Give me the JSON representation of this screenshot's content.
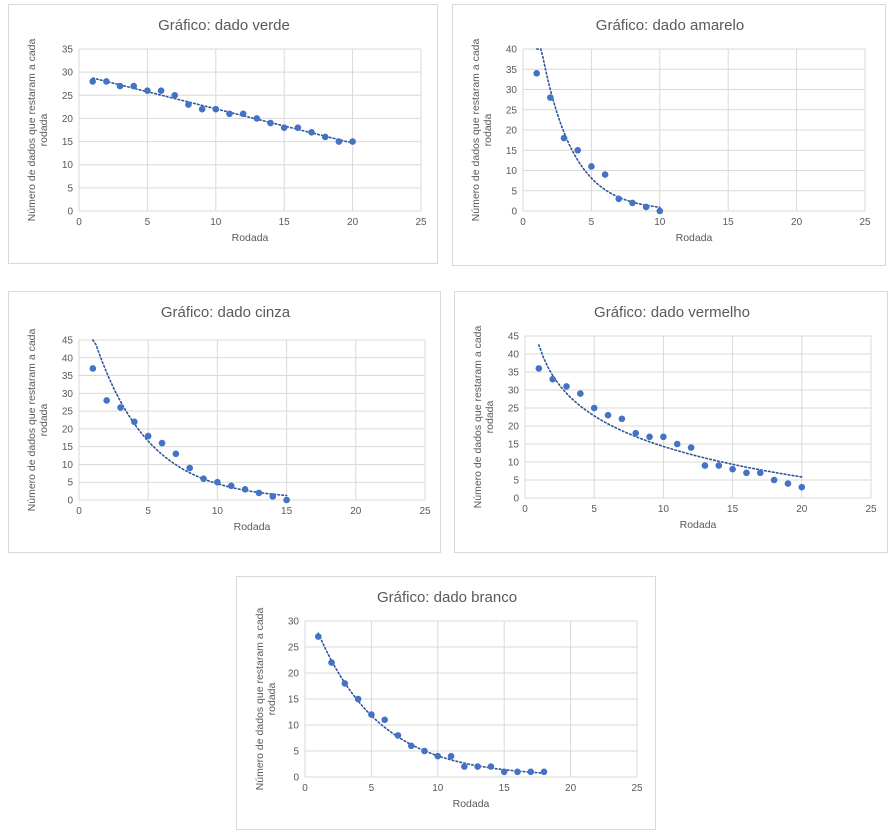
{
  "chart_data": [
    {
      "type": "scatter",
      "title": "Gráfico: dado verde",
      "xlabel": "Rodada",
      "ylabel_lines": [
        "Número de dados que restaram a cada",
        "rodada"
      ],
      "xlim": [
        0,
        25
      ],
      "ylim": [
        0,
        35
      ],
      "xticks": [
        0,
        5,
        10,
        15,
        20,
        25
      ],
      "yticks": [
        0,
        5,
        10,
        15,
        20,
        25,
        30,
        35
      ],
      "grid": true,
      "trendline": "linear",
      "x": [
        1,
        2,
        3,
        4,
        5,
        6,
        7,
        8,
        9,
        10,
        11,
        12,
        13,
        14,
        15,
        16,
        17,
        18,
        19,
        20
      ],
      "y": [
        28,
        28,
        27,
        27,
        26,
        26,
        25,
        23,
        22,
        22,
        21,
        21,
        20,
        19,
        18,
        18,
        17,
        16,
        15,
        15
      ]
    },
    {
      "type": "scatter",
      "title": "Gráfico: dado amarelo",
      "xlabel": "Rodada",
      "ylabel_lines": [
        "Número de dados que restaram a cada",
        "rodada"
      ],
      "xlim": [
        0,
        25
      ],
      "ylim": [
        0,
        40
      ],
      "xticks": [
        0,
        5,
        10,
        15,
        20,
        25
      ],
      "yticks": [
        0,
        5,
        10,
        15,
        20,
        25,
        30,
        35,
        40
      ],
      "grid": true,
      "trendline": "exponential",
      "x": [
        1,
        2,
        3,
        4,
        5,
        6,
        7,
        8,
        9,
        10
      ],
      "y": [
        34,
        28,
        18,
        15,
        11,
        9,
        3,
        2,
        1,
        0
      ]
    },
    {
      "type": "scatter",
      "title": "Gráfico: dado cinza",
      "xlabel": "Rodada",
      "ylabel_lines": [
        "Número de dados que restaram a cada",
        "rodada"
      ],
      "xlim": [
        0,
        25
      ],
      "ylim": [
        0,
        45
      ],
      "xticks": [
        0,
        5,
        10,
        15,
        20,
        25
      ],
      "yticks": [
        0,
        5,
        10,
        15,
        20,
        25,
        30,
        35,
        40,
        45
      ],
      "grid": true,
      "trendline": "exponential",
      "x": [
        1,
        2,
        3,
        4,
        5,
        6,
        7,
        8,
        9,
        10,
        11,
        12,
        13,
        14,
        15
      ],
      "y": [
        37,
        28,
        26,
        22,
        18,
        16,
        13,
        9,
        6,
        5,
        4,
        3,
        2,
        1,
        0
      ]
    },
    {
      "type": "scatter",
      "title": "Gráfico: dado vermelho",
      "xlabel": "Rodada",
      "ylabel_lines": [
        "Número de dados que restaram a cada",
        "rodada"
      ],
      "xlim": [
        0,
        25
      ],
      "ylim": [
        0,
        45
      ],
      "xticks": [
        0,
        5,
        10,
        15,
        20,
        25
      ],
      "yticks": [
        0,
        5,
        10,
        15,
        20,
        25,
        30,
        35,
        40,
        45
      ],
      "grid": true,
      "trendline": "logarithmic",
      "x": [
        1,
        2,
        3,
        4,
        5,
        6,
        7,
        8,
        9,
        10,
        11,
        12,
        13,
        14,
        15,
        16,
        17,
        18,
        19,
        20
      ],
      "y": [
        36,
        33,
        31,
        29,
        25,
        23,
        22,
        18,
        17,
        17,
        15,
        14,
        9,
        9,
        8,
        7,
        7,
        5,
        4,
        3
      ]
    },
    {
      "type": "scatter",
      "title": "Gráfico: dado branco",
      "xlabel": "Rodada",
      "ylabel_lines": [
        "Número de dados que restaram a cada",
        "rodada"
      ],
      "xlim": [
        0,
        25
      ],
      "ylim": [
        0,
        30
      ],
      "xticks": [
        0,
        5,
        10,
        15,
        20,
        25
      ],
      "yticks": [
        0,
        5,
        10,
        15,
        20,
        25,
        30
      ],
      "grid": true,
      "trendline": "exponential",
      "x": [
        1,
        2,
        3,
        4,
        5,
        6,
        7,
        8,
        9,
        10,
        11,
        12,
        13,
        14,
        15,
        16,
        17,
        18
      ],
      "y": [
        27,
        22,
        18,
        15,
        12,
        11,
        8,
        6,
        5,
        4,
        4,
        2,
        2,
        2,
        1,
        1,
        1,
        1
      ]
    }
  ],
  "colors": {
    "marker": "#4472c4",
    "trend": "#2f5597",
    "grid": "#d9d9d9",
    "text": "#595959"
  }
}
